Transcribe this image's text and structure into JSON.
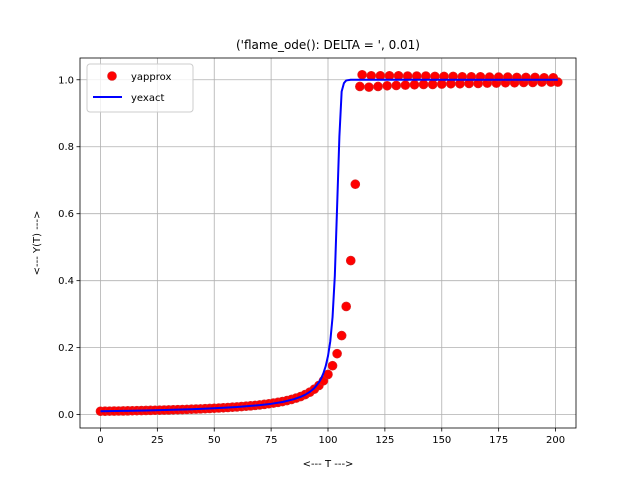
{
  "chart_data": {
    "type": "line",
    "title": "('flame_ode(): DELTA = ', 0.01)",
    "xlabel": "<--- T --->",
    "ylabel": "<--- Y(T) --->",
    "xlim": [
      -9,
      209
    ],
    "ylim": [
      -0.04,
      1.065
    ],
    "xticks": [
      0,
      25,
      50,
      75,
      100,
      125,
      150,
      175,
      200
    ],
    "yticks": [
      0.0,
      0.2,
      0.4,
      0.6,
      0.8,
      1.0
    ],
    "xtick_labels": [
      "0",
      "25",
      "50",
      "75",
      "100",
      "125",
      "150",
      "175",
      "200"
    ],
    "ytick_labels": [
      "0.0",
      "0.2",
      "0.4",
      "0.6",
      "0.8",
      "1.0"
    ],
    "grid": true,
    "legend": "upper-left",
    "series": [
      {
        "name": "yapprox",
        "style": "markers",
        "color": "#ff0000",
        "edge_color": "#d62728",
        "points": [
          [
            0,
            0.01
          ],
          [
            2,
            0.0102
          ],
          [
            4,
            0.0104
          ],
          [
            6,
            0.0106
          ],
          [
            8,
            0.0108
          ],
          [
            10,
            0.011
          ],
          [
            12,
            0.0113
          ],
          [
            14,
            0.0115
          ],
          [
            16,
            0.0118
          ],
          [
            18,
            0.0121
          ],
          [
            20,
            0.0124
          ],
          [
            22,
            0.0127
          ],
          [
            24,
            0.013
          ],
          [
            26,
            0.0133
          ],
          [
            28,
            0.0137
          ],
          [
            30,
            0.014
          ],
          [
            32,
            0.0144
          ],
          [
            34,
            0.0148
          ],
          [
            36,
            0.0152
          ],
          [
            38,
            0.0156
          ],
          [
            40,
            0.0161
          ],
          [
            42,
            0.0166
          ],
          [
            44,
            0.0171
          ],
          [
            46,
            0.0177
          ],
          [
            48,
            0.0183
          ],
          [
            50,
            0.019
          ],
          [
            52,
            0.0197
          ],
          [
            54,
            0.0204
          ],
          [
            56,
            0.0212
          ],
          [
            58,
            0.0221
          ],
          [
            60,
            0.023
          ],
          [
            62,
            0.024
          ],
          [
            64,
            0.0251
          ],
          [
            66,
            0.0263
          ],
          [
            68,
            0.0276
          ],
          [
            70,
            0.029
          ],
          [
            72,
            0.0306
          ],
          [
            74,
            0.0324
          ],
          [
            76,
            0.0344
          ],
          [
            78,
            0.0366
          ],
          [
            80,
            0.0391
          ],
          [
            82,
            0.042
          ],
          [
            84,
            0.0454
          ],
          [
            86,
            0.0494
          ],
          [
            88,
            0.054
          ],
          [
            90,
            0.06
          ],
          [
            92,
            0.067
          ],
          [
            94,
            0.076
          ],
          [
            96,
            0.087
          ],
          [
            98,
            0.101
          ],
          [
            100,
            0.12
          ],
          [
            102,
            0.146
          ],
          [
            104,
            0.182
          ],
          [
            106,
            0.236
          ],
          [
            108,
            0.323
          ],
          [
            110,
            0.46
          ],
          [
            112,
            0.688
          ],
          [
            114,
            0.98
          ],
          [
            115,
            1.015
          ],
          [
            118,
            0.978
          ],
          [
            119,
            1.012
          ],
          [
            122,
            0.98
          ],
          [
            123,
            1.012
          ],
          [
            126,
            0.982
          ],
          [
            127,
            1.012
          ],
          [
            130,
            0.983
          ],
          [
            131,
            1.012
          ],
          [
            134,
            0.984
          ],
          [
            135,
            1.011
          ],
          [
            138,
            0.985
          ],
          [
            139,
            1.011
          ],
          [
            142,
            0.986
          ],
          [
            143,
            1.011
          ],
          [
            146,
            0.986
          ],
          [
            147,
            1.01
          ],
          [
            150,
            0.987
          ],
          [
            151,
            1.01
          ],
          [
            154,
            0.988
          ],
          [
            155,
            1.01
          ],
          [
            158,
            0.988
          ],
          [
            159,
            1.009
          ],
          [
            162,
            0.989
          ],
          [
            163,
            1.009
          ],
          [
            166,
            0.989
          ],
          [
            167,
            1.009
          ],
          [
            170,
            0.99
          ],
          [
            171,
            1.008
          ],
          [
            174,
            0.99
          ],
          [
            175,
            1.008
          ],
          [
            178,
            0.991
          ],
          [
            179,
            1.008
          ],
          [
            182,
            0.991
          ],
          [
            183,
            1.007
          ],
          [
            186,
            0.992
          ],
          [
            187,
            1.007
          ],
          [
            190,
            0.992
          ],
          [
            191,
            1.007
          ],
          [
            194,
            0.993
          ],
          [
            195,
            1.006
          ],
          [
            198,
            0.993
          ],
          [
            199,
            1.006
          ],
          [
            201,
            0.993
          ]
        ]
      },
      {
        "name": "yexact",
        "style": "line",
        "color": "#0000ff",
        "points": [
          [
            0,
            0.01
          ],
          [
            10,
            0.011
          ],
          [
            20,
            0.0124
          ],
          [
            30,
            0.014
          ],
          [
            40,
            0.016
          ],
          [
            50,
            0.0188
          ],
          [
            60,
            0.0226
          ],
          [
            70,
            0.0283
          ],
          [
            75,
            0.0322
          ],
          [
            80,
            0.0377
          ],
          [
            85,
            0.046
          ],
          [
            88,
            0.0532
          ],
          [
            90,
            0.0595
          ],
          [
            92,
            0.0678
          ],
          [
            94,
            0.0792
          ],
          [
            96,
            0.0961
          ],
          [
            97,
            0.108
          ],
          [
            98,
            0.124
          ],
          [
            99,
            0.145
          ],
          [
            100,
            0.175
          ],
          [
            101,
            0.219
          ],
          [
            102,
            0.291
          ],
          [
            103,
            0.415
          ],
          [
            104,
            0.62
          ],
          [
            105,
            0.83
          ],
          [
            106,
            0.965
          ],
          [
            107,
            0.99
          ],
          [
            108,
            0.998
          ],
          [
            110,
            1.0
          ],
          [
            130,
            1.0
          ],
          [
            150,
            1.0
          ],
          [
            170,
            1.0
          ],
          [
            190,
            1.0
          ],
          [
            201,
            1.0
          ]
        ]
      }
    ]
  }
}
